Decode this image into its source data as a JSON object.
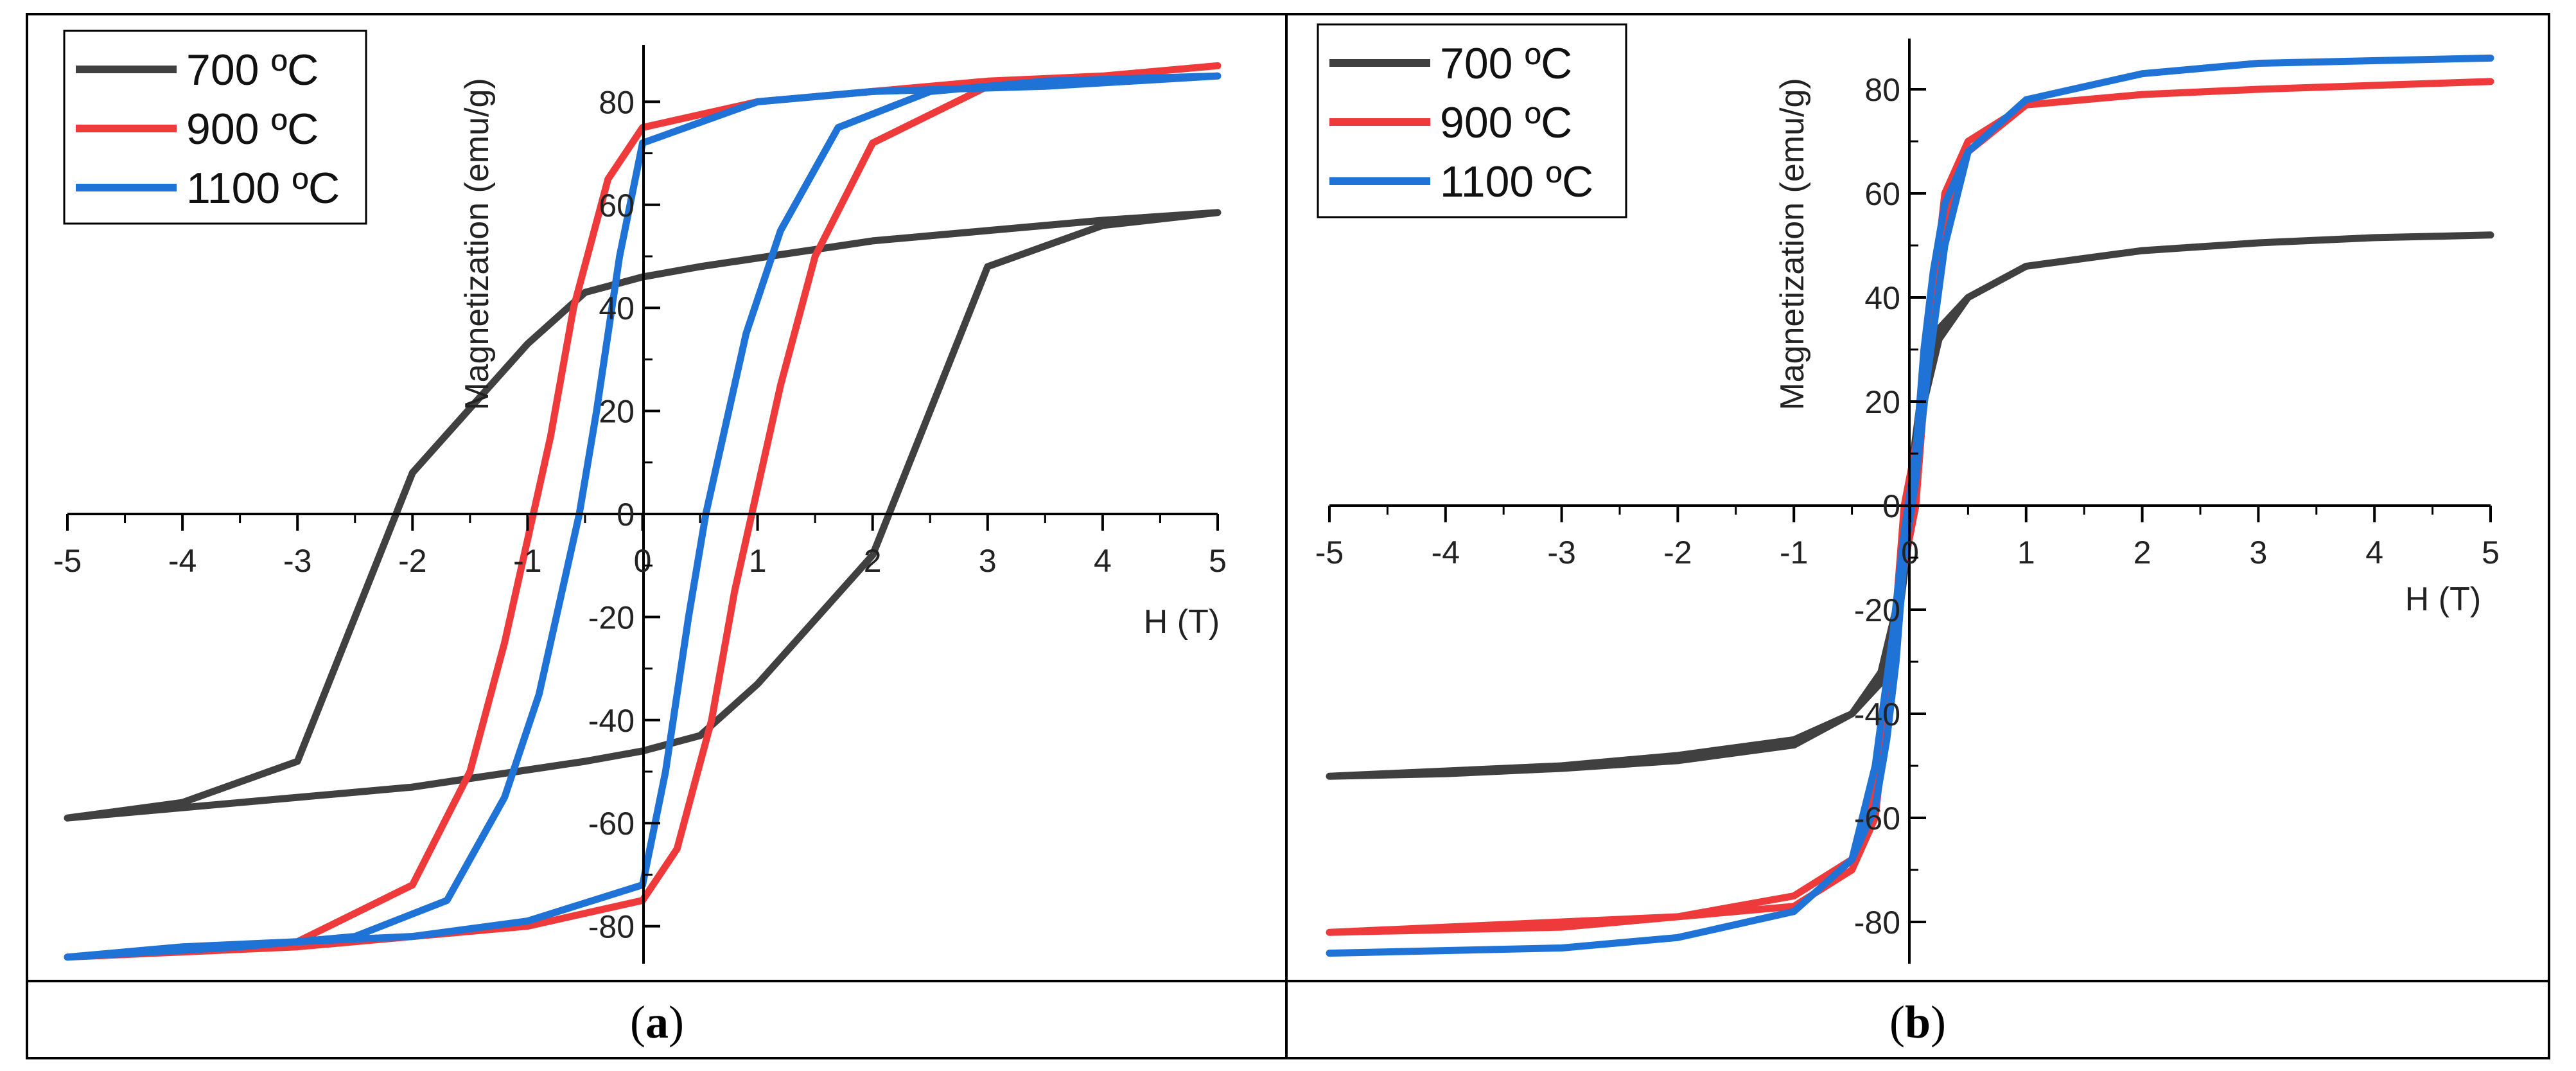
{
  "colors": {
    "700C": "#404040",
    "900C": "#ee3a3a",
    "1100C": "#1f73d6",
    "axis": "#000000"
  },
  "chart_data": [
    {
      "panel": "a",
      "type": "line",
      "caption": [
        "(",
        "a",
        ")"
      ],
      "xlabel": "H (T)",
      "ylabel": "Magnetization (emu/g)",
      "xlim": [
        -5,
        5
      ],
      "ylim": [
        -90,
        90
      ],
      "xticks": [
        "-5",
        "-4",
        "-3",
        "-2",
        "-1",
        "0",
        "1",
        "2",
        "3",
        "4",
        "5"
      ],
      "yticks": [
        "-80",
        "-60",
        "-40",
        "-20",
        "0",
        "20",
        "40",
        "60",
        "80"
      ],
      "legend": [
        "700 ºC",
        "900 ºC",
        "1100 ºC"
      ],
      "series": [
        {
          "name": "700 ºC",
          "color_key": "700C",
          "x": [
            -5,
            -4,
            -3,
            -2.5,
            -2,
            -1.7,
            -1.4,
            -1.1,
            -0.8,
            -0.5,
            0,
            0.5,
            1,
            2,
            3,
            4,
            5,
            4,
            3,
            2.5,
            2,
            1.7,
            1.4,
            1.1,
            0.8,
            0.5,
            0,
            -0.5,
            -1,
            -2,
            -3,
            -4,
            -5
          ],
          "y": [
            -59,
            -57,
            -55,
            -54,
            -53,
            -52,
            -51,
            -50,
            -49,
            -48,
            -46,
            -43,
            -33,
            -8,
            48,
            56,
            58.5,
            57,
            55,
            54,
            53,
            52,
            51,
            50,
            49,
            48,
            46,
            43,
            33,
            8,
            -48,
            -56,
            -59
          ]
        },
        {
          "name": "900 ºC",
          "color_key": "900C",
          "x": [
            -5,
            -4,
            -3,
            -2,
            -1,
            0,
            0.3,
            0.6,
            0.8,
            0.95,
            1.2,
            1.5,
            2,
            3,
            4,
            5,
            4,
            3,
            2,
            1,
            0,
            -0.3,
            -0.6,
            -0.8,
            -0.95,
            -1.2,
            -1.5,
            -2,
            -3,
            -4,
            -5
          ],
          "y": [
            -86,
            -85,
            -84,
            -82,
            -80,
            -75,
            -65,
            -40,
            -15,
            0,
            25,
            50,
            72,
            83,
            85,
            87,
            85,
            84,
            82,
            80,
            75,
            65,
            40,
            15,
            0,
            -25,
            -50,
            -72,
            -83,
            -85,
            -86
          ]
        },
        {
          "name": "1100 ºC",
          "color_key": "1100C",
          "x": [
            -5,
            -4,
            -3,
            -2,
            -1,
            0,
            0.2,
            0.4,
            0.55,
            0.65,
            0.9,
            1.2,
            1.7,
            2.5,
            3.5,
            5,
            3.5,
            2,
            1,
            0,
            -0.2,
            -0.4,
            -0.55,
            -0.65,
            -0.9,
            -1.2,
            -1.7,
            -2.5,
            -3.5,
            -5
          ],
          "y": [
            -86,
            -84,
            -83,
            -82,
            -79,
            -72,
            -50,
            -20,
            0,
            10,
            35,
            55,
            75,
            82,
            84,
            85,
            83,
            82,
            80,
            72,
            50,
            20,
            0,
            -10,
            -35,
            -55,
            -75,
            -82,
            -84,
            -86
          ]
        }
      ]
    },
    {
      "panel": "b",
      "type": "line",
      "caption": [
        "(",
        "b",
        ")"
      ],
      "xlabel": "H (T)",
      "ylabel": "Magnetization (emu/g)",
      "xlim": [
        -5,
        5
      ],
      "ylim": [
        -90,
        90
      ],
      "xticks": [
        "-5",
        "-4",
        "-3",
        "-2",
        "-1",
        "0",
        "1",
        "2",
        "3",
        "4",
        "5"
      ],
      "yticks": [
        "-80",
        "-60",
        "-40",
        "-20",
        "0",
        "20",
        "40",
        "60",
        "80"
      ],
      "legend": [
        "700 ºC",
        "900 ºC",
        "1100 ºC"
      ],
      "series": [
        {
          "name": "700 ºC",
          "color_key": "700C",
          "x": [
            -5,
            -4,
            -3,
            -2,
            -1,
            -0.5,
            -0.25,
            -0.1,
            -0.03,
            0.02,
            0.1,
            0.25,
            0.5,
            1,
            2,
            3,
            4,
            5,
            4,
            3,
            2,
            1,
            0.5,
            0.25,
            0.1,
            0.03,
            -0.02,
            -0.1,
            -0.25,
            -0.5,
            -1,
            -2,
            -3,
            -4,
            -5
          ],
          "y": [
            -52,
            -51,
            -50,
            -48,
            -45,
            -40,
            -34,
            -22,
            -10,
            0,
            18,
            32,
            40,
            46,
            49,
            50.5,
            51.5,
            52,
            51.5,
            50.5,
            49,
            46,
            40,
            34,
            22,
            10,
            0,
            -18,
            -32,
            -40,
            -46,
            -49,
            -50.5,
            -51.5,
            -52
          ]
        },
        {
          "name": "900 ºC",
          "color_key": "900C",
          "x": [
            -5,
            -3,
            -2,
            -1,
            -0.5,
            -0.3,
            -0.18,
            -0.08,
            0.05,
            0.12,
            0.2,
            0.3,
            0.5,
            1,
            2,
            3,
            5,
            3,
            2,
            1,
            0.5,
            0.3,
            0.18,
            0.08,
            -0.05,
            -0.12,
            -0.2,
            -0.3,
            -0.5,
            -1,
            -2,
            -3,
            -5
          ],
          "y": [
            -82,
            -81,
            -79,
            -75,
            -68,
            -55,
            -35,
            -15,
            0,
            20,
            40,
            60,
            70,
            77,
            79,
            80,
            81.5,
            80,
            79,
            77,
            68,
            55,
            35,
            15,
            0,
            -20,
            -40,
            -60,
            -70,
            -77,
            -79,
            -80,
            -82
          ]
        },
        {
          "name": "1100 ºC",
          "color_key": "1100C",
          "x": [
            -5,
            -3,
            -2,
            -1,
            -0.5,
            -0.3,
            -0.15,
            -0.05,
            0.05,
            0.12,
            0.2,
            0.3,
            0.5,
            1,
            2,
            3,
            5,
            3,
            2,
            1,
            0.5,
            0.3,
            0.15,
            0.05,
            -0.05,
            -0.12,
            -0.2,
            -0.3,
            -0.5,
            -1,
            -2,
            -3,
            -5
          ],
          "y": [
            -86,
            -85,
            -83,
            -78,
            -68,
            -50,
            -25,
            -5,
            10,
            30,
            45,
            58,
            68,
            78,
            83,
            85,
            86,
            85,
            83,
            78,
            68,
            50,
            25,
            5,
            -10,
            -30,
            -45,
            -58,
            -68,
            -78,
            -83,
            -85,
            -86
          ]
        }
      ]
    }
  ]
}
